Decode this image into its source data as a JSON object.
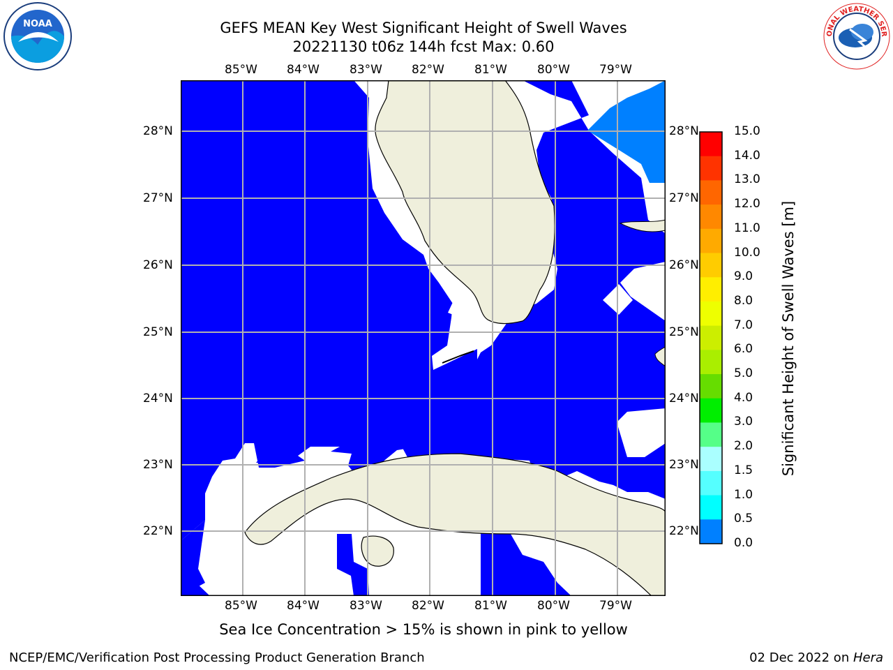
{
  "title": {
    "line1": "GEFS MEAN Key West Significant Height of Swell Waves",
    "line2": "20221130 t06z 144h fcst   Max: 0.60"
  },
  "logos": {
    "left": {
      "icon": "noaa-logo",
      "text": "NOAA"
    },
    "right": {
      "icon": "nws-logo",
      "text": "NATIONAL WEATHER SERVICE"
    }
  },
  "map": {
    "lon_labels": [
      "85°W",
      "84°W",
      "83°W",
      "82°W",
      "81°W",
      "80°W",
      "79°W"
    ],
    "lat_labels": [
      "28°N",
      "27°N",
      "26°N",
      "25°N",
      "24°N",
      "23°N",
      "22°N"
    ],
    "colors": {
      "ocean_low": "#0000ff",
      "ocean_mid": "#0080ff",
      "land": "#efefdc",
      "grid": "#b0b0b0"
    }
  },
  "colorbar": {
    "ticks": [
      "15.0",
      "14.0",
      "13.0",
      "12.0",
      "11.0",
      "10.0",
      "9.0",
      "8.0",
      "7.0",
      "6.0",
      "5.0",
      "4.0",
      "3.0",
      "2.0",
      "1.5",
      "1.0",
      "0.5",
      "0.0"
    ],
    "colors": [
      "#ff0000",
      "#ff3300",
      "#ff6600",
      "#ff8800",
      "#ffaa00",
      "#ffcc00",
      "#ffee00",
      "#eeff00",
      "#ccee00",
      "#aaee00",
      "#66dd00",
      "#00ee00",
      "#55ff88",
      "#aaffff",
      "#55ffff",
      "#00ffff",
      "#0080ff",
      "#0000ff"
    ],
    "label": "Significant Height of Swell Waves [m]"
  },
  "note": "Sea Ice Concentration > 15% is shown in pink to yellow",
  "footer": {
    "left": "NCEP/EMC/Verification Post Processing Product Generation Branch",
    "right_date": "02 Dec 2022 on ",
    "right_host": "Hera"
  }
}
